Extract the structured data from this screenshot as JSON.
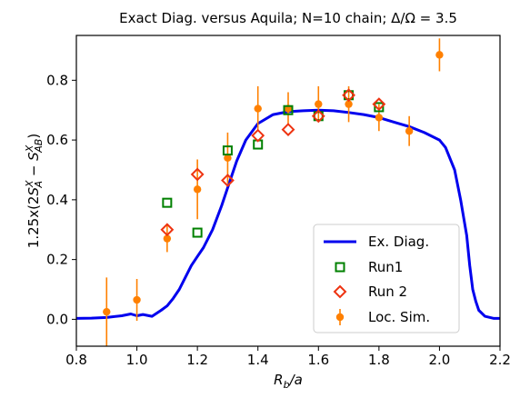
{
  "chart_data": {
    "type": "scatter",
    "title": "Exact Diag. versus Aquila; N=10 chain; Δ/Ω = 3.5",
    "xlabel": "R_b/a",
    "ylabel": "1.25x(2S^X_A − S^X_AB)",
    "xlim": [
      0.8,
      2.2
    ],
    "ylim": [
      -0.09,
      0.95
    ],
    "x_ticks": [
      0.8,
      1.0,
      1.2,
      1.4,
      1.6,
      1.8,
      2.0,
      2.2
    ],
    "x_tick_labels": [
      "0.8",
      "1.0",
      "1.2",
      "1.4",
      "1.6",
      "1.8",
      "2.0",
      "2.2"
    ],
    "y_ticks": [
      0.0,
      0.2,
      0.4,
      0.6,
      0.8
    ],
    "y_tick_labels": [
      "0.0",
      "0.2",
      "0.4",
      "0.6",
      "0.8"
    ],
    "grid": false,
    "legend_position": "lower-right",
    "series": [
      {
        "name": "Ex. Diag.",
        "kind": "line",
        "color": "#0000ee",
        "x": [
          0.8,
          0.85,
          0.9,
          0.95,
          0.98,
          1.0,
          1.02,
          1.05,
          1.08,
          1.1,
          1.12,
          1.14,
          1.16,
          1.18,
          1.2,
          1.22,
          1.25,
          1.28,
          1.3,
          1.33,
          1.36,
          1.4,
          1.45,
          1.5,
          1.55,
          1.6,
          1.65,
          1.7,
          1.75,
          1.8,
          1.85,
          1.9,
          1.95,
          2.0,
          2.02,
          2.05,
          2.07,
          2.09,
          2.1,
          2.11,
          2.12,
          2.13,
          2.15,
          2.18,
          2.2
        ],
        "y": [
          0.003,
          0.004,
          0.006,
          0.012,
          0.018,
          0.012,
          0.016,
          0.01,
          0.03,
          0.045,
          0.07,
          0.1,
          0.14,
          0.18,
          0.21,
          0.24,
          0.3,
          0.38,
          0.44,
          0.53,
          0.6,
          0.655,
          0.685,
          0.695,
          0.698,
          0.7,
          0.698,
          0.692,
          0.685,
          0.675,
          0.66,
          0.645,
          0.625,
          0.6,
          0.575,
          0.5,
          0.4,
          0.28,
          0.18,
          0.1,
          0.06,
          0.03,
          0.01,
          0.003,
          0.003
        ]
      },
      {
        "name": "Run1",
        "kind": "marker",
        "marker": "square",
        "color": "#008000",
        "x": [
          1.1,
          1.2,
          1.3,
          1.4,
          1.5,
          1.6,
          1.7,
          1.8
        ],
        "y": [
          0.39,
          0.29,
          0.565,
          0.585,
          0.7,
          0.68,
          0.75,
          0.71
        ]
      },
      {
        "name": "Run 2",
        "kind": "marker",
        "marker": "diamond",
        "color": "#ee3311",
        "x": [
          1.1,
          1.2,
          1.3,
          1.4,
          1.5,
          1.6,
          1.7,
          1.8
        ],
        "y": [
          0.3,
          0.485,
          0.465,
          0.615,
          0.635,
          0.68,
          0.75,
          0.72
        ]
      },
      {
        "name": "Loc. Sim.",
        "kind": "errorbar",
        "marker": "circle",
        "color": "#ff8000",
        "x": [
          0.9,
          1.0,
          1.1,
          1.2,
          1.3,
          1.4,
          1.5,
          1.6,
          1.7,
          1.8,
          1.9,
          2.0
        ],
        "y": [
          0.025,
          0.065,
          0.27,
          0.435,
          0.54,
          0.705,
          0.705,
          0.72,
          0.72,
          0.675,
          0.63,
          0.885
        ],
        "err": [
          0.115,
          0.07,
          0.045,
          0.1,
          0.085,
          0.075,
          0.055,
          0.06,
          0.06,
          0.045,
          0.05,
          0.055
        ]
      }
    ]
  }
}
